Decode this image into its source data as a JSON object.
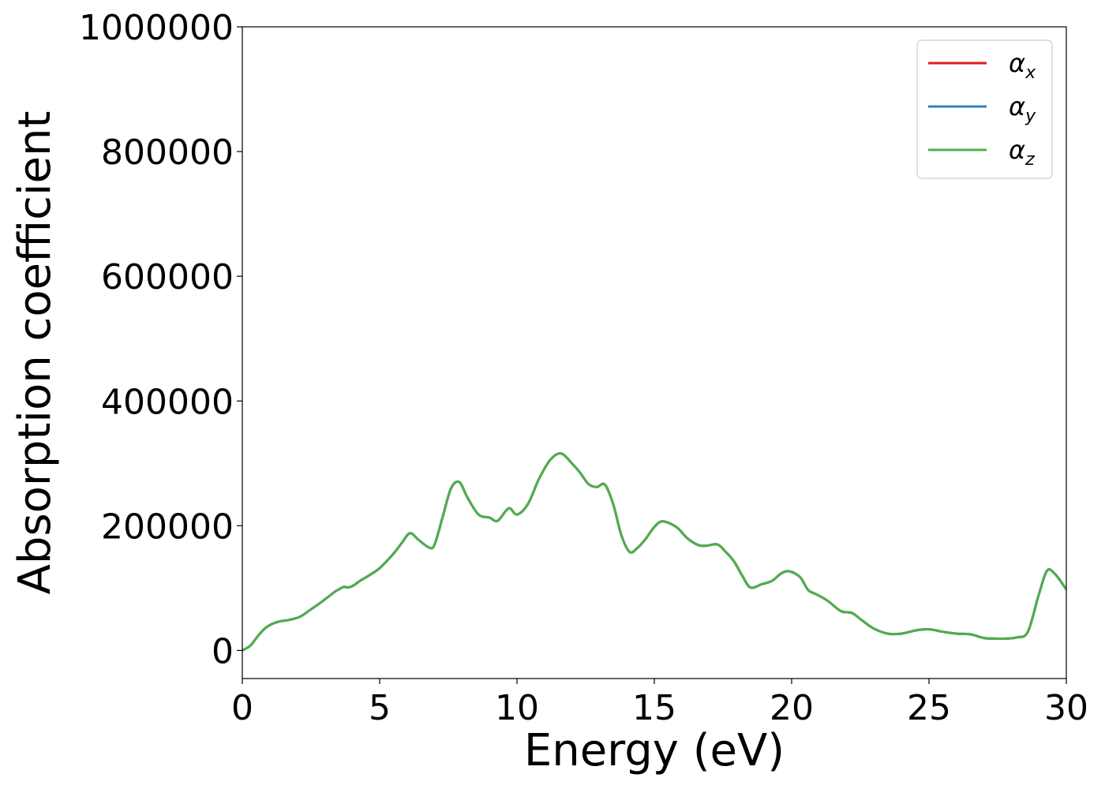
{
  "chart_data": {
    "type": "line",
    "title": "",
    "xlabel": "Energy (eV)",
    "ylabel": "Absorption coefficient",
    "xlim": [
      0,
      30
    ],
    "ylim": [
      -45000,
      1000000
    ],
    "grid": false,
    "legend_position": "top-right",
    "x_ticks": [
      0,
      5,
      10,
      15,
      20,
      25,
      30
    ],
    "x_tick_labels": [
      "0",
      "5",
      "10",
      "15",
      "20",
      "25",
      "30"
    ],
    "y_ticks": [
      0,
      200000,
      400000,
      600000,
      800000,
      1000000
    ],
    "y_tick_labels": [
      "0",
      "200000",
      "400000",
      "600000",
      "800000",
      "1000000"
    ],
    "x": [
      0,
      0.3,
      0.6,
      0.9,
      1.3,
      1.7,
      2.1,
      2.5,
      2.8,
      3.1,
      3.4,
      3.7,
      3.8,
      4.0,
      4.3,
      4.6,
      5.0,
      5.5,
      5.8,
      6.1,
      6.4,
      6.8,
      7.0,
      7.3,
      7.6,
      7.9,
      8.2,
      8.6,
      9.0,
      9.3,
      9.7,
      10.0,
      10.4,
      10.8,
      11.2,
      11.6,
      12.0,
      12.3,
      12.6,
      12.9,
      13.2,
      13.5,
      13.8,
      14.1,
      14.4,
      14.7,
      15.0,
      15.3,
      15.8,
      16.2,
      16.6,
      16.9,
      17.3,
      17.6,
      17.9,
      18.2,
      18.5,
      18.9,
      19.3,
      19.6,
      19.9,
      20.3,
      20.6,
      20.9,
      21.3,
      21.8,
      22.2,
      22.6,
      23.0,
      23.5,
      24.0,
      24.5,
      25.0,
      25.5,
      26.0,
      26.5,
      27.0,
      27.4,
      27.8,
      28.2,
      28.6,
      29.0,
      29.3,
      29.6,
      30.0
    ],
    "series": [
      {
        "name": "α_x",
        "color": "#e41a1c",
        "values": [
          0,
          8000,
          25000,
          38000,
          46000,
          49000,
          54000,
          66000,
          75000,
          85000,
          95000,
          102000,
          101000,
          103000,
          112000,
          120000,
          132000,
          155000,
          172000,
          188000,
          178000,
          165000,
          170000,
          215000,
          260000,
          270000,
          245000,
          218000,
          213000,
          208000,
          228000,
          218000,
          235000,
          275000,
          305000,
          316000,
          300000,
          285000,
          267000,
          262000,
          266000,
          235000,
          185000,
          158000,
          165000,
          180000,
          198000,
          207000,
          198000,
          180000,
          169000,
          168000,
          170000,
          158000,
          143000,
          120000,
          101000,
          106000,
          112000,
          123000,
          127000,
          118000,
          97000,
          90000,
          80000,
          63000,
          60000,
          47000,
          35000,
          27000,
          27000,
          32000,
          34000,
          30000,
          27000,
          26000,
          20000,
          19000,
          19000,
          21000,
          30000,
          90000,
          128000,
          122000,
          98000
        ]
      },
      {
        "name": "α_y",
        "color": "#377eb8",
        "values": [
          0,
          8000,
          25000,
          38000,
          46000,
          49000,
          54000,
          66000,
          75000,
          85000,
          95000,
          102000,
          101000,
          103000,
          112000,
          120000,
          132000,
          155000,
          172000,
          188000,
          178000,
          165000,
          170000,
          215000,
          260000,
          270000,
          245000,
          218000,
          213000,
          208000,
          228000,
          218000,
          235000,
          275000,
          305000,
          316000,
          300000,
          285000,
          267000,
          262000,
          266000,
          235000,
          185000,
          158000,
          165000,
          180000,
          198000,
          207000,
          198000,
          180000,
          169000,
          168000,
          170000,
          158000,
          143000,
          120000,
          101000,
          106000,
          112000,
          123000,
          127000,
          118000,
          97000,
          90000,
          80000,
          63000,
          60000,
          47000,
          35000,
          27000,
          27000,
          32000,
          34000,
          30000,
          27000,
          26000,
          20000,
          19000,
          19000,
          21000,
          30000,
          90000,
          128000,
          122000,
          98000
        ]
      },
      {
        "name": "α_z",
        "color": "#4daf4a",
        "values": [
          0,
          8000,
          25000,
          38000,
          46000,
          49000,
          54000,
          66000,
          75000,
          85000,
          95000,
          102000,
          101000,
          103000,
          112000,
          120000,
          132000,
          155000,
          172000,
          188000,
          178000,
          165000,
          170000,
          215000,
          260000,
          270000,
          245000,
          218000,
          213000,
          208000,
          228000,
          218000,
          235000,
          275000,
          305000,
          316000,
          300000,
          285000,
          267000,
          262000,
          266000,
          235000,
          185000,
          158000,
          165000,
          180000,
          198000,
          207000,
          198000,
          180000,
          169000,
          168000,
          170000,
          158000,
          143000,
          120000,
          101000,
          106000,
          112000,
          123000,
          127000,
          118000,
          97000,
          90000,
          80000,
          63000,
          60000,
          47000,
          35000,
          27000,
          27000,
          32000,
          34000,
          30000,
          27000,
          26000,
          20000,
          19000,
          19000,
          21000,
          30000,
          90000,
          128000,
          122000,
          98000
        ]
      }
    ],
    "legend": [
      {
        "base": "α",
        "sub": "x",
        "color": "#e41a1c"
      },
      {
        "base": "α",
        "sub": "y",
        "color": "#377eb8"
      },
      {
        "base": "α",
        "sub": "z",
        "color": "#4daf4a"
      }
    ]
  }
}
